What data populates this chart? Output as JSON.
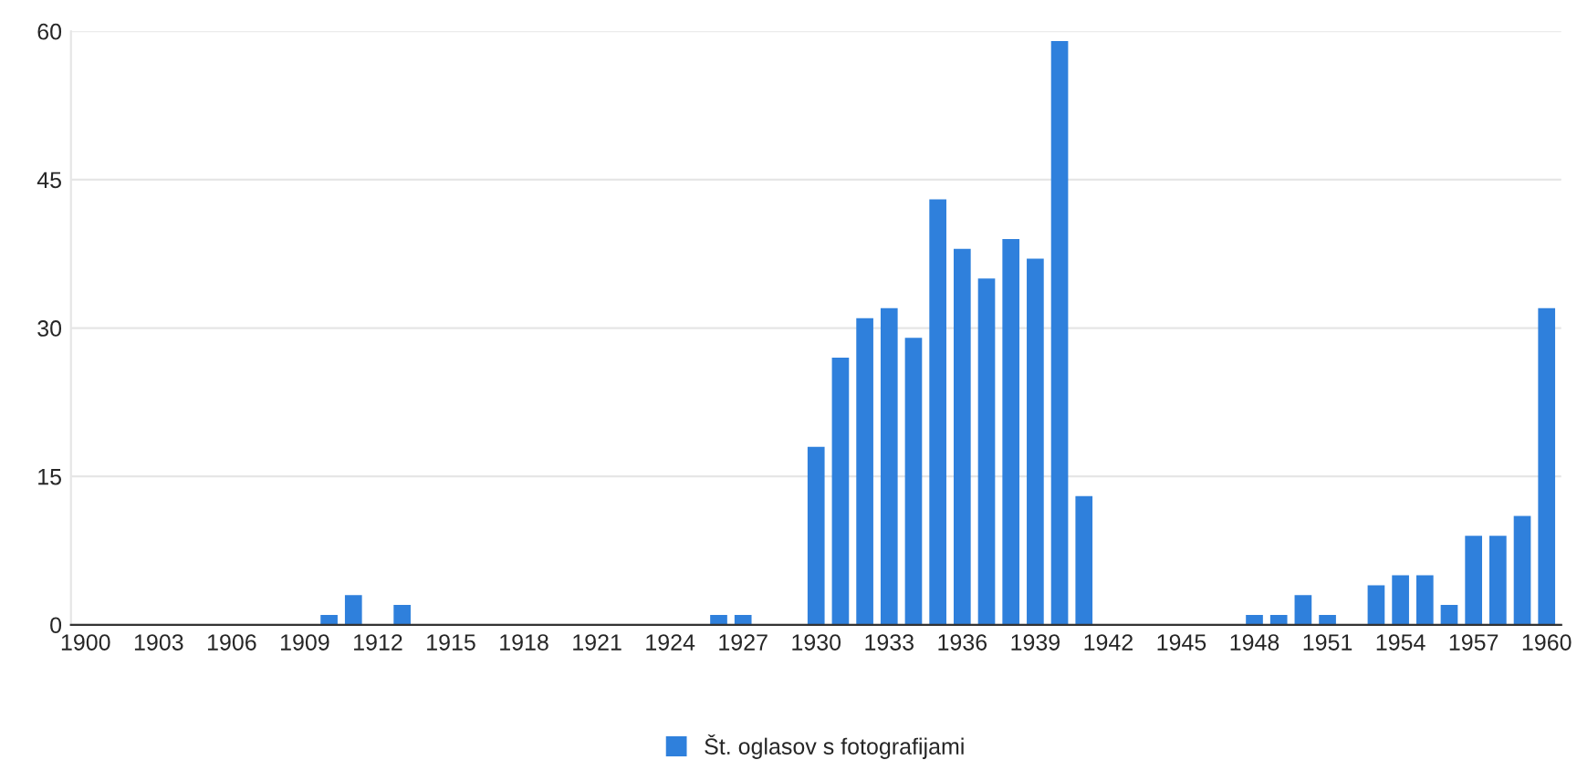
{
  "chart_data": {
    "type": "bar",
    "categories": [
      "1900",
      null,
      null,
      "1903",
      null,
      null,
      "1906",
      null,
      null,
      "1909",
      null,
      null,
      "1912",
      null,
      null,
      "1915",
      null,
      null,
      "1918",
      null,
      null,
      "1921",
      null,
      null,
      "1924",
      null,
      null,
      "1927",
      null,
      null,
      "1930",
      null,
      null,
      "1933",
      null,
      null,
      "1936",
      null,
      null,
      "1939",
      null,
      null,
      "1942",
      null,
      null,
      "1945",
      null,
      null,
      "1948",
      null,
      null,
      "1951",
      null,
      null,
      "1954",
      null,
      null,
      "1957",
      null,
      null,
      "1960"
    ],
    "series": [
      {
        "name": "Št. oglasov s fotografijami",
        "color": "#2f80dc",
        "values": [
          0,
          0,
          0,
          0,
          0,
          0,
          0,
          0,
          0,
          0,
          1,
          3,
          0,
          2,
          0,
          0,
          0,
          0,
          0,
          0,
          0,
          0,
          0,
          0,
          0,
          0,
          1,
          1,
          0,
          0,
          18,
          27,
          31,
          32,
          29,
          43,
          38,
          35,
          39,
          37,
          59,
          13,
          0,
          0,
          0,
          0,
          0,
          0,
          1,
          1,
          3,
          1,
          0,
          4,
          5,
          5,
          2,
          9,
          9,
          11,
          32
        ]
      }
    ],
    "ylim": [
      0,
      60
    ],
    "yticks": [
      0,
      15,
      30,
      45,
      60
    ],
    "grid": "y",
    "legend": "bottom"
  }
}
